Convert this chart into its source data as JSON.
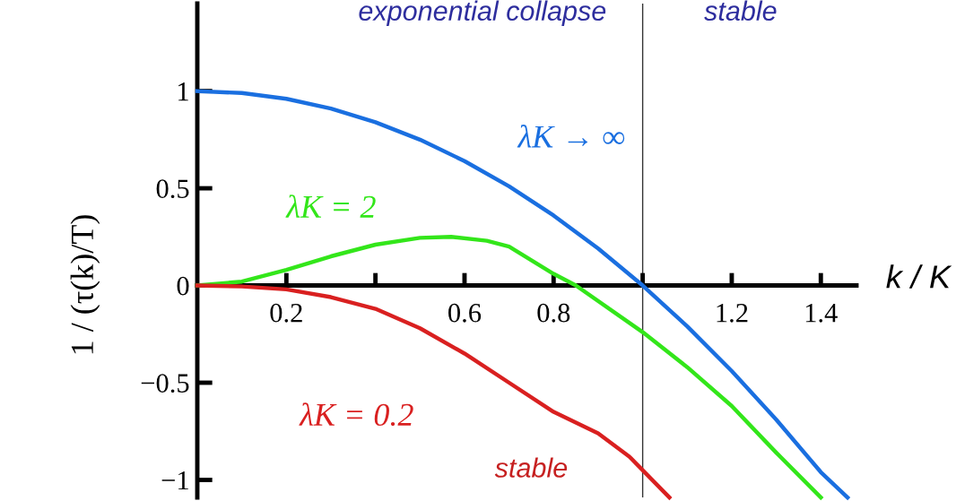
{
  "chart_data": {
    "type": "line",
    "xlabel": "k / K",
    "ylabel": "1 / (τ(k)/T)",
    "xlim": [
      0,
      1.48
    ],
    "ylim": [
      -1.09,
      1.45
    ],
    "xticks": [
      0.2,
      {
        "value": 0.4,
        "label": null
      },
      0.6,
      0.8,
      {
        "value": 1.0,
        "label": null
      },
      1.2,
      1.4
    ],
    "yticks": [
      {
        "value": -1,
        "label": "−1"
      },
      {
        "value": -0.5,
        "label": "−0.5"
      },
      0,
      0.5,
      1
    ],
    "grid": false,
    "marker": "none",
    "line_style": "solid",
    "ref_lines": [
      {
        "axis": "x",
        "value": 1.0,
        "color": "#333333"
      }
    ],
    "annotations": [
      "exponential collapse",
      "stable",
      "stable"
    ],
    "series": [
      {
        "name": "λK → ∞",
        "color": "#1a6fe0",
        "x": [
          0,
          0.1,
          0.2,
          0.3,
          0.4,
          0.5,
          0.6,
          0.7,
          0.8,
          0.9,
          1.0,
          1.1,
          1.2,
          1.3,
          1.4,
          1.46
        ],
        "values": [
          1,
          0.99,
          0.96,
          0.91,
          0.84,
          0.75,
          0.64,
          0.51,
          0.36,
          0.19,
          0,
          -0.21,
          -0.44,
          -0.69,
          -0.96,
          -1.09
        ]
      },
      {
        "name": "λK = 2",
        "color": "#33e61a",
        "x": [
          0,
          0.1,
          0.2,
          0.3,
          0.4,
          0.5,
          0.57,
          0.65,
          0.7,
          0.8,
          0.85,
          1.0,
          1.1,
          1.2,
          1.3,
          1.4
        ],
        "values": [
          0,
          0.02,
          0.08,
          0.15,
          0.21,
          0.245,
          0.25,
          0.23,
          0.2,
          0.06,
          0,
          -0.24,
          -0.42,
          -0.62,
          -0.86,
          -1.09
        ]
      },
      {
        "name": "λK = 0.2",
        "color": "#d92020",
        "x": [
          0,
          0.1,
          0.2,
          0.3,
          0.4,
          0.5,
          0.6,
          0.7,
          0.8,
          0.9,
          0.97,
          1.06
        ],
        "values": [
          0,
          -0.005,
          -0.02,
          -0.06,
          -0.12,
          -0.22,
          -0.35,
          -0.5,
          -0.65,
          -0.76,
          -0.88,
          -1.09
        ]
      }
    ]
  }
}
